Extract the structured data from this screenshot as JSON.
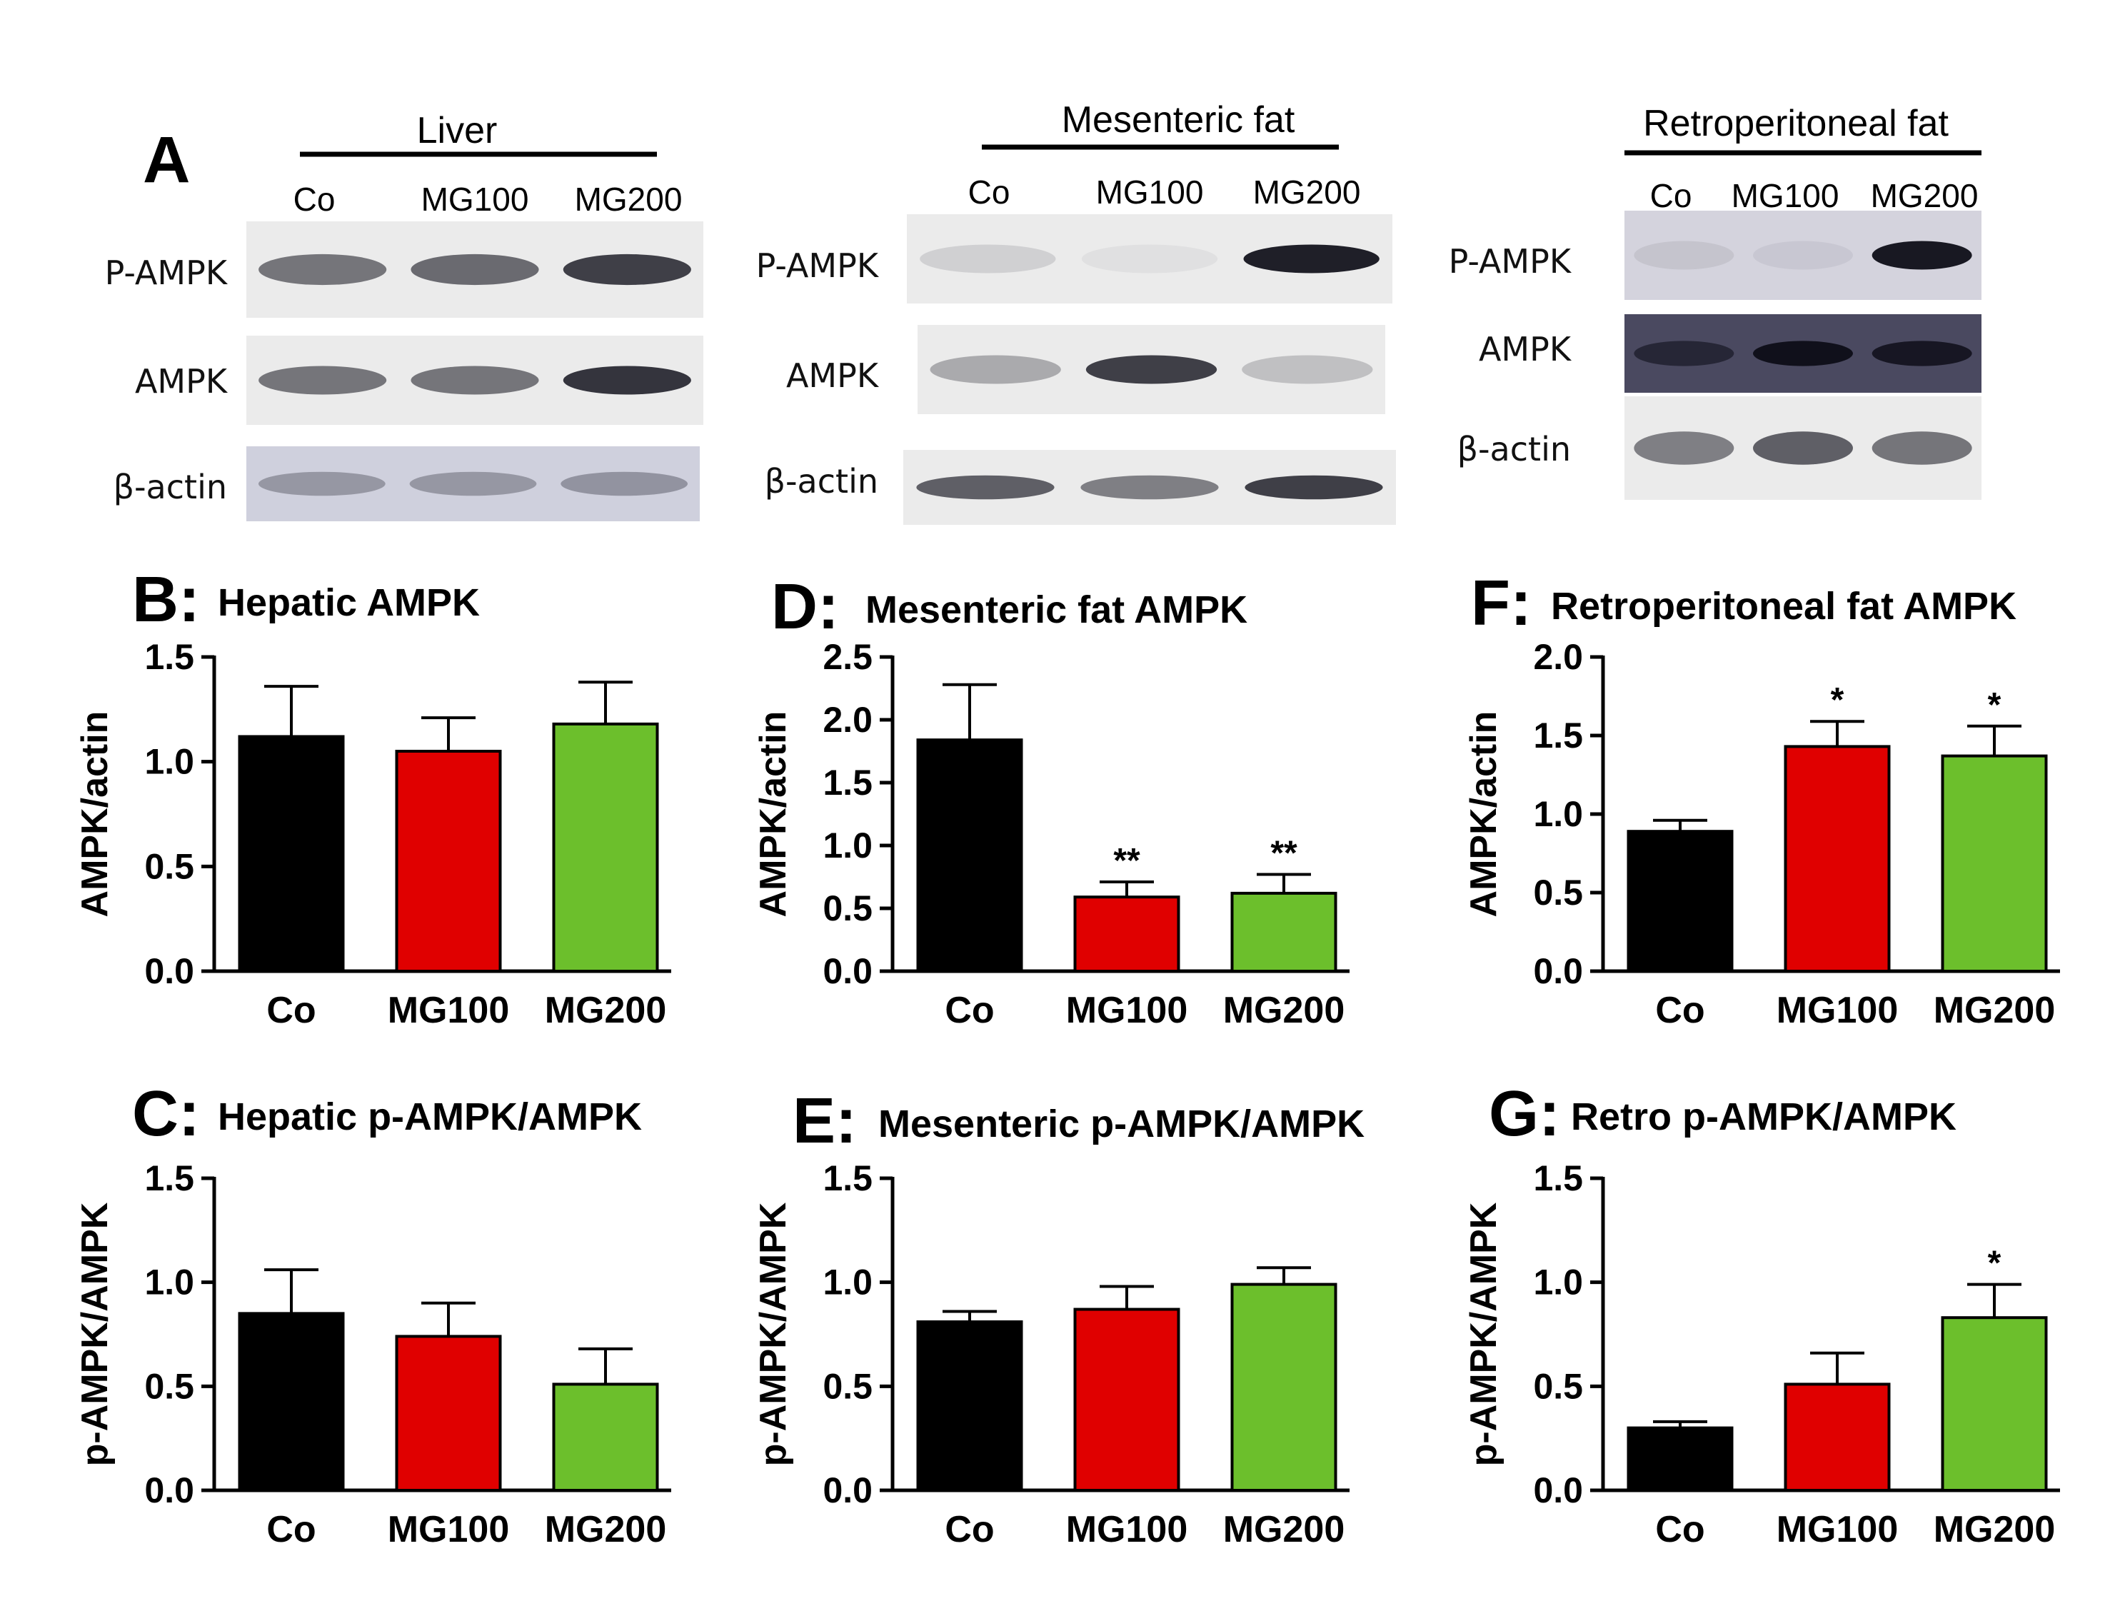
{
  "panel_a": {
    "letter": "A",
    "groups": [
      "Co",
      "MG100",
      "MG200"
    ],
    "blots": [
      {
        "tissue": "Liver",
        "rows": [
          {
            "label": "P-AMPK",
            "intensities": [
              0.55,
              0.6,
              0.8
            ]
          },
          {
            "label": "AMPK",
            "intensities": [
              0.55,
              0.55,
              0.85
            ]
          },
          {
            "label": "β-actin",
            "intensities": [
              0.3,
              0.3,
              0.32
            ]
          }
        ]
      },
      {
        "tissue": "Mesenteric fat",
        "rows": [
          {
            "label": "P-AMPK",
            "intensities": [
              0.12,
              0.05,
              0.95
            ]
          },
          {
            "label": "AMPK",
            "intensities": [
              0.3,
              0.8,
              0.2
            ]
          },
          {
            "label": "β-actin",
            "intensities": [
              0.65,
              0.5,
              0.8
            ]
          }
        ]
      },
      {
        "tissue": "Retroperitoneal fat",
        "rows": [
          {
            "label": "P-AMPK",
            "intensities": [
              0.08,
              0.06,
              0.98
            ]
          },
          {
            "label": "AMPK",
            "intensities": [
              0.55,
              0.9,
              0.8
            ]
          },
          {
            "label": "β-actin",
            "intensities": [
              0.5,
              0.65,
              0.55
            ]
          }
        ]
      }
    ]
  },
  "colors": {
    "Co": "#000000",
    "MG100": "#e00000",
    "MG200": "#6cbf2c"
  },
  "chart_data": [
    {
      "panel": "B",
      "title": "Hepatic AMPK",
      "type": "bar",
      "categories": [
        "Co",
        "MG100",
        "MG200"
      ],
      "values": [
        1.12,
        1.05,
        1.18
      ],
      "errors": [
        0.24,
        0.16,
        0.2
      ],
      "significance": [
        "",
        "",
        ""
      ],
      "ylabel": "AMPK/actin",
      "ylim": [
        0,
        1.5
      ],
      "yticks": [
        "0.0",
        "0.5",
        "1.0",
        "1.5"
      ]
    },
    {
      "panel": "D",
      "title": "Mesenteric fat AMPK",
      "type": "bar",
      "categories": [
        "Co",
        "MG100",
        "MG200"
      ],
      "values": [
        1.84,
        0.59,
        0.62
      ],
      "errors": [
        0.44,
        0.12,
        0.15
      ],
      "significance": [
        "",
        "**",
        "**"
      ],
      "ylabel": "AMPK/actin",
      "ylim": [
        0,
        2.5
      ],
      "yticks": [
        "0.0",
        "0.5",
        "1.0",
        "1.5",
        "2.0",
        "2.5"
      ]
    },
    {
      "panel": "F",
      "title": "Retroperitoneal fat AMPK",
      "type": "bar",
      "categories": [
        "Co",
        "MG100",
        "MG200"
      ],
      "values": [
        0.89,
        1.43,
        1.37
      ],
      "errors": [
        0.07,
        0.16,
        0.19
      ],
      "significance": [
        "",
        "*",
        "*"
      ],
      "ylabel": "AMPK/actin",
      "ylim": [
        0,
        2.0
      ],
      "yticks": [
        "0.0",
        "0.5",
        "1.0",
        "1.5",
        "2.0"
      ]
    },
    {
      "panel": "C",
      "title": "Hepatic p-AMPK/AMPK",
      "type": "bar",
      "categories": [
        "Co",
        "MG100",
        "MG200"
      ],
      "values": [
        0.85,
        0.74,
        0.51
      ],
      "errors": [
        0.21,
        0.16,
        0.17
      ],
      "significance": [
        "",
        "",
        ""
      ],
      "ylabel": "p-AMPK/AMPK",
      "ylim": [
        0,
        1.5
      ],
      "yticks": [
        "0.0",
        "0.5",
        "1.0",
        "1.5"
      ]
    },
    {
      "panel": "E",
      "title": "Mesenteric p-AMPK/AMPK",
      "type": "bar",
      "categories": [
        "Co",
        "MG100",
        "MG200"
      ],
      "values": [
        0.81,
        0.87,
        0.99
      ],
      "errors": [
        0.05,
        0.11,
        0.08
      ],
      "significance": [
        "",
        "",
        ""
      ],
      "ylabel": "p-AMPK/AMPK",
      "ylim": [
        0,
        1.5
      ],
      "yticks": [
        "0.0",
        "0.5",
        "1.0",
        "1.5"
      ]
    },
    {
      "panel": "G",
      "title": "Retro p-AMPK/AMPK",
      "type": "bar",
      "categories": [
        "Co",
        "MG100",
        "MG200"
      ],
      "values": [
        0.3,
        0.51,
        0.83
      ],
      "errors": [
        0.03,
        0.15,
        0.16
      ],
      "significance": [
        "",
        "",
        "*"
      ],
      "ylabel": "p-AMPK/AMPK",
      "ylim": [
        0,
        1.5
      ],
      "yticks": [
        "0.0",
        "0.5",
        "1.0",
        "1.5"
      ]
    }
  ]
}
